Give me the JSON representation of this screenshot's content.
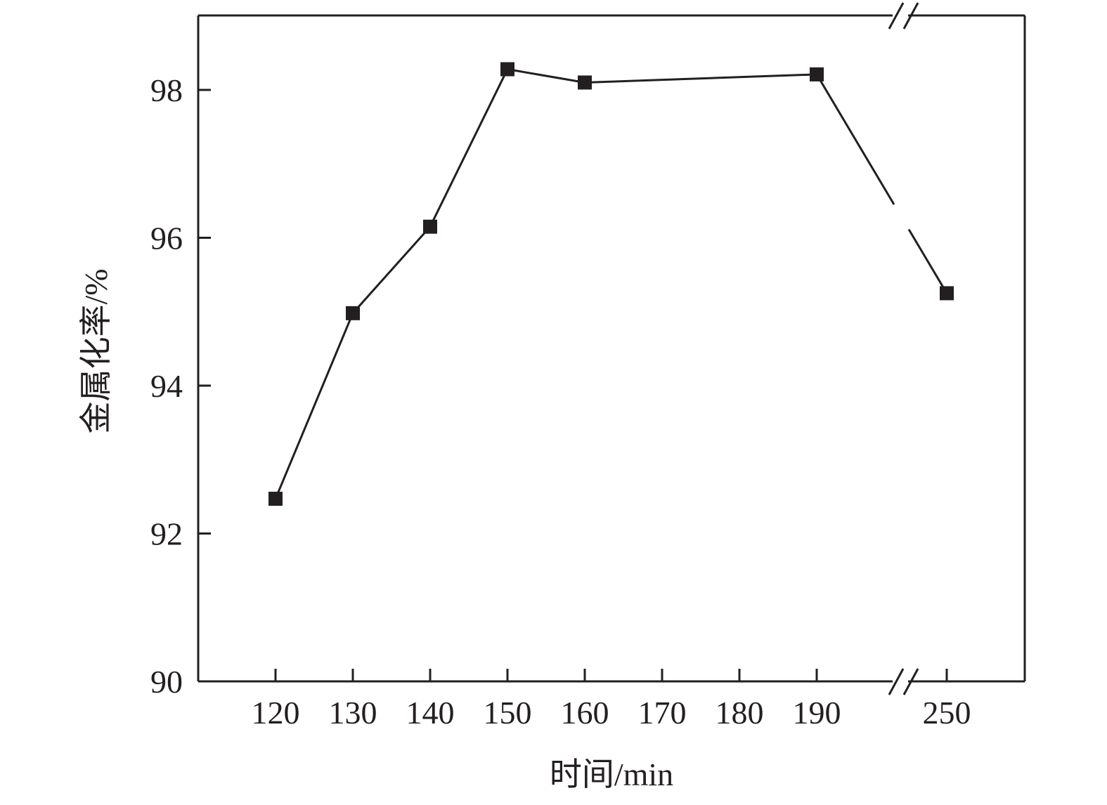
{
  "chart_data": {
    "type": "line",
    "title": "",
    "xlabel": "时间/min",
    "ylabel": "金属化率/%",
    "x": [
      120,
      130,
      140,
      150,
      160,
      190,
      250
    ],
    "series": [
      {
        "values": [
          92.47,
          94.98,
          96.15,
          98.28,
          98.1,
          98.21,
          95.25
        ],
        "marker": "square",
        "color": "#231f20"
      }
    ],
    "x_ticks": [
      120,
      130,
      140,
      150,
      160,
      170,
      180,
      190,
      250
    ],
    "x_tick_labels": [
      "120",
      "130",
      "140",
      "150",
      "160",
      "170",
      "180",
      "190",
      "250"
    ],
    "x_axis_break": [
      190,
      250
    ],
    "y_ticks": [
      90,
      92,
      94,
      96,
      98
    ],
    "y_tick_labels": [
      "90",
      "92",
      "94",
      "96",
      "98"
    ],
    "ylim": [
      90,
      99
    ],
    "grid": false,
    "legend": "none"
  }
}
